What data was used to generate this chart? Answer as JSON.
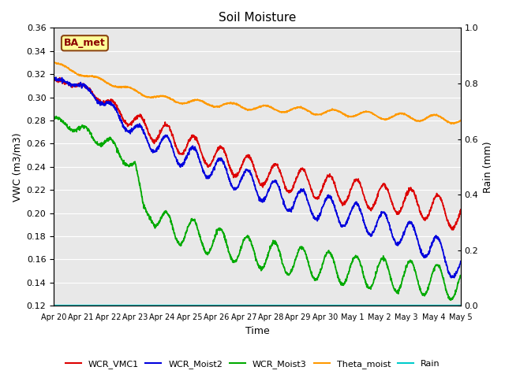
{
  "title": "Soil Moisture",
  "xlabel": "Time",
  "ylabel_left": "VWC (m3/m3)",
  "ylabel_right": "Rain (mm)",
  "ylim_left": [
    0.12,
    0.36
  ],
  "ylim_right": [
    0.0,
    1.0
  ],
  "yticks_left": [
    0.12,
    0.14,
    0.16,
    0.18,
    0.2,
    0.22,
    0.24,
    0.26,
    0.28,
    0.3,
    0.32,
    0.34,
    0.36
  ],
  "yticks_right": [
    0.0,
    0.2,
    0.4,
    0.6,
    0.8,
    1.0
  ],
  "xtick_labels": [
    "Apr 20",
    "Apr 21",
    "Apr 22",
    "Apr 23",
    "Apr 24",
    "Apr 25",
    "Apr 26",
    "Apr 27",
    "Apr 28",
    "Apr 29",
    "Apr 30",
    "May 1",
    "May 2",
    "May 3",
    "May 4",
    "May 5"
  ],
  "colors": {
    "WCR_VMC1": "#dd0000",
    "WCR_Moist2": "#0000dd",
    "WCR_Moist3": "#00aa00",
    "Theta_moist": "#ff9900",
    "Rain": "#00cccc",
    "background": "#e8e8e8",
    "grid": "#ffffff",
    "annotation_box_bg": "#ffff99",
    "annotation_box_edge": "#8B4513"
  },
  "annotation_text": "BA_met",
  "n_points": 1500
}
